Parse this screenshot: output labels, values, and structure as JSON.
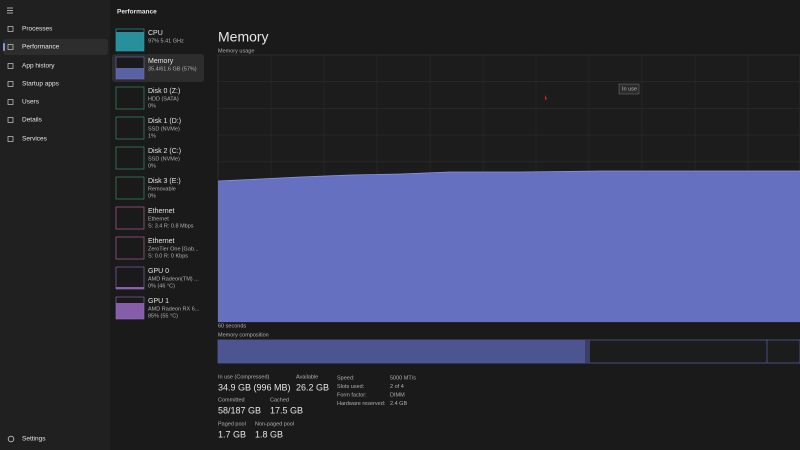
{
  "header": {
    "title": "Performance"
  },
  "nav": {
    "items": [
      "Processes",
      "Performance",
      "App history",
      "Startup apps",
      "Users",
      "Details",
      "Services"
    ],
    "settings": "Settings"
  },
  "devices": [
    {
      "name": "CPU",
      "lines": [
        "97% 5.41 GHz"
      ]
    },
    {
      "name": "Memory",
      "lines": [
        "35.4/61.6 GB (57%)"
      ]
    },
    {
      "name": "Disk 0 (Z:)",
      "lines": [
        "HDD (SATA)",
        "0%"
      ]
    },
    {
      "name": "Disk 1 (D:)",
      "lines": [
        "SSD (NVMe)",
        "1%"
      ]
    },
    {
      "name": "Disk 2 (C:)",
      "lines": [
        "SSD (NVMe)",
        "0%"
      ]
    },
    {
      "name": "Disk 3 (E:)",
      "lines": [
        "Removable",
        "0%"
      ]
    },
    {
      "name": "Ethernet",
      "lines": [
        "Ethernet",
        "S: 3.4 R: 0.8 Mbps"
      ]
    },
    {
      "name": "Ethernet",
      "lines": [
        "ZeroTier One [Gab...",
        "S: 0.0 R: 0 Kbps"
      ]
    },
    {
      "name": "GPU 0",
      "lines": [
        "AMD Radeon(TM) ...",
        "0% (46 °C)"
      ]
    },
    {
      "name": "GPU 1",
      "lines": [
        "AMD Radeon RX 6...",
        "85% (55 °C)"
      ]
    }
  ],
  "main": {
    "title": "Memory",
    "graph_label": "Memory usage",
    "tooltip": "In use",
    "time_label": "60 seconds",
    "composition_label": "Memory composition"
  },
  "stats": [
    {
      "label": "In use (Compressed)",
      "value": "34.9 GB (996 MB)"
    },
    {
      "label": "Available",
      "value": "26.2 GB"
    },
    {
      "label": "Committed",
      "value": "58/187 GB"
    },
    {
      "label": "Cached",
      "value": "17.5 GB"
    },
    {
      "label": "Paged pool",
      "value": "1.7 GB"
    },
    {
      "label": "Non-paged pool",
      "value": "1.8 GB"
    }
  ],
  "specs": [
    {
      "label": "Speed:",
      "value": "5000 MT/s"
    },
    {
      "label": "Slots used:",
      "value": "2 of 4"
    },
    {
      "label": "Form factor:",
      "value": "DIMM"
    },
    {
      "label": "Hardware reserved:",
      "value": "2.4 GB"
    }
  ]
}
